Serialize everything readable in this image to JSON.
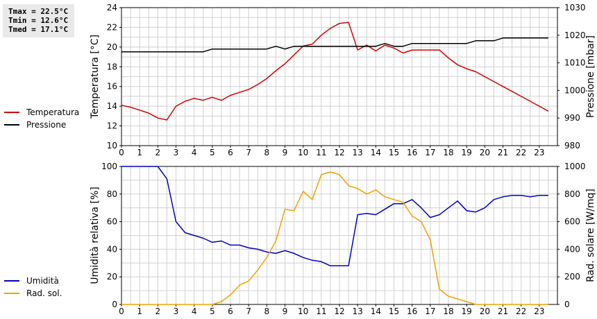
{
  "stats": {
    "tmax": "Tmax = 22.5°C",
    "tmin": "Tmin = 12.6°C",
    "tmed": "Tmed = 17.1°C"
  },
  "colors": {
    "temperature": "#d00000",
    "pressure": "#000000",
    "humidity": "#0000c0",
    "radiation": "#f0a000",
    "grid": "#d0d0d0"
  },
  "legend_top": [
    {
      "label": "Temperatura",
      "color": "#d00000"
    },
    {
      "label": "Pressione",
      "color": "#000000"
    }
  ],
  "legend_bottom": [
    {
      "label": "Umidità",
      "color": "#0000c0"
    },
    {
      "label": "Rad. sol.",
      "color": "#f0a000"
    }
  ],
  "chart_data": [
    {
      "type": "line",
      "ylabel_left": "Temperatura [°C]",
      "ylabel_right": "Pressione [mbar]",
      "xlim": [
        0,
        24
      ],
      "ylim_left": [
        10,
        24
      ],
      "ylim_right": [
        980,
        1030
      ],
      "x_ticks": [
        0,
        1,
        2,
        3,
        4,
        5,
        6,
        7,
        8,
        9,
        10,
        11,
        12,
        13,
        14,
        15,
        16,
        17,
        18,
        19,
        20,
        21,
        22,
        23
      ],
      "y_ticks_left": [
        10,
        12,
        14,
        16,
        18,
        20,
        22,
        24
      ],
      "y_ticks_right": [
        980,
        990,
        1000,
        1010,
        1020,
        1030
      ],
      "grid": true,
      "series": [
        {
          "name": "Temperatura",
          "axis": "left",
          "x": [
            0,
            0.5,
            1,
            1.5,
            2,
            2.5,
            3,
            3.5,
            4,
            4.5,
            5,
            5.5,
            6,
            6.5,
            7,
            7.5,
            8,
            8.5,
            9,
            9.5,
            10,
            10.5,
            11,
            11.5,
            12,
            12.5,
            13,
            13.5,
            14,
            14.5,
            15,
            15.5,
            16,
            16.5,
            17,
            17.5,
            18,
            18.5,
            19,
            19.5,
            20,
            20.5,
            21,
            21.5,
            22,
            22.5,
            23,
            23.5
          ],
          "y": [
            14.1,
            13.9,
            13.6,
            13.3,
            12.8,
            12.6,
            14.0,
            14.5,
            14.8,
            14.6,
            14.9,
            14.6,
            15.1,
            15.4,
            15.7,
            16.2,
            16.8,
            17.6,
            18.3,
            19.2,
            20.1,
            20.3,
            21.2,
            21.9,
            22.4,
            22.5,
            19.7,
            20.2,
            19.6,
            20.2,
            19.9,
            19.4,
            19.7,
            19.7,
            19.7,
            19.7,
            18.9,
            18.2,
            17.8,
            17.5,
            17.0,
            16.5,
            16.0,
            15.5,
            15.0,
            14.5,
            14.0,
            13.5
          ]
        },
        {
          "name": "Pressione",
          "axis": "right",
          "x": [
            0,
            0.5,
            1,
            1.5,
            2,
            2.5,
            3,
            3.5,
            4,
            4.5,
            5,
            5.5,
            6,
            6.5,
            7,
            7.5,
            8,
            8.5,
            9,
            9.5,
            10,
            10.5,
            11,
            11.5,
            12,
            12.5,
            13,
            13.5,
            14,
            14.5,
            15,
            15.5,
            16,
            16.5,
            17,
            17.5,
            18,
            18.5,
            19,
            19.5,
            20,
            20.5,
            21,
            21.5,
            22,
            22.5,
            23,
            23.5
          ],
          "y": [
            1014,
            1014,
            1014,
            1014,
            1014,
            1014,
            1014,
            1014,
            1014,
            1014,
            1015,
            1015,
            1015,
            1015,
            1015,
            1015,
            1015,
            1016,
            1015,
            1016,
            1016,
            1016,
            1016,
            1016,
            1016,
            1016,
            1016,
            1016,
            1016,
            1017,
            1016,
            1016,
            1017,
            1017,
            1017,
            1017,
            1017,
            1017,
            1017,
            1018,
            1018,
            1018,
            1019,
            1019,
            1019,
            1019,
            1019,
            1019
          ]
        }
      ]
    },
    {
      "type": "line",
      "ylabel_left": "Umidità relativa [%]",
      "ylabel_right": "Rad. solare [W/mq]",
      "xlim": [
        0,
        24
      ],
      "ylim_left": [
        0,
        100
      ],
      "ylim_right": [
        0,
        1000
      ],
      "x_ticks": [
        0,
        1,
        2,
        3,
        4,
        5,
        6,
        7,
        8,
        9,
        10,
        11,
        12,
        13,
        14,
        15,
        16,
        17,
        18,
        19,
        20,
        21,
        22,
        23
      ],
      "y_ticks_left": [
        0,
        20,
        40,
        60,
        80,
        100
      ],
      "y_ticks_right": [
        0,
        200,
        400,
        600,
        800,
        1000
      ],
      "grid": true,
      "series": [
        {
          "name": "Umidità",
          "axis": "left",
          "x": [
            0,
            0.5,
            1,
            1.5,
            2,
            2.5,
            3,
            3.5,
            4,
            4.5,
            5,
            5.5,
            6,
            6.5,
            7,
            7.5,
            8,
            8.5,
            9,
            9.5,
            10,
            10.5,
            11,
            11.5,
            12,
            12.5,
            13,
            13.5,
            14,
            14.5,
            15,
            15.5,
            16,
            16.5,
            17,
            17.5,
            18,
            18.5,
            19,
            19.5,
            20,
            20.5,
            21,
            21.5,
            22,
            22.5,
            23,
            23.5
          ],
          "y": [
            100,
            100,
            100,
            100,
            100,
            91,
            60,
            52,
            50,
            48,
            45,
            46,
            43,
            43,
            41,
            40,
            38,
            37,
            39,
            37,
            34,
            32,
            31,
            28,
            28,
            28,
            65,
            66,
            65,
            69,
            73,
            73,
            76,
            70,
            63,
            65,
            70,
            75,
            68,
            67,
            70,
            76,
            78,
            79,
            79,
            78,
            79,
            79
          ]
        },
        {
          "name": "Rad. sol.",
          "axis": "right",
          "x": [
            0,
            0.5,
            1,
            1.5,
            2,
            2.5,
            3,
            3.5,
            4,
            4.5,
            5,
            5.5,
            6,
            6.5,
            7,
            7.5,
            8,
            8.5,
            9,
            9.5,
            10,
            10.5,
            11,
            11.5,
            12,
            12.5,
            13,
            13.5,
            14,
            14.5,
            15,
            15.5,
            16,
            16.5,
            17,
            17.5,
            18,
            18.5,
            19,
            19.5,
            20,
            20.5,
            21,
            21.5,
            22,
            22.5,
            23,
            23.5
          ],
          "y": [
            0,
            0,
            0,
            0,
            0,
            0,
            0,
            0,
            0,
            0,
            0,
            20,
            70,
            140,
            170,
            250,
            340,
            460,
            690,
            680,
            820,
            760,
            940,
            960,
            940,
            860,
            840,
            800,
            830,
            780,
            760,
            740,
            640,
            600,
            470,
            110,
            60,
            40,
            20,
            0,
            0,
            0,
            0,
            0,
            0,
            0,
            0,
            0
          ]
        }
      ]
    }
  ]
}
